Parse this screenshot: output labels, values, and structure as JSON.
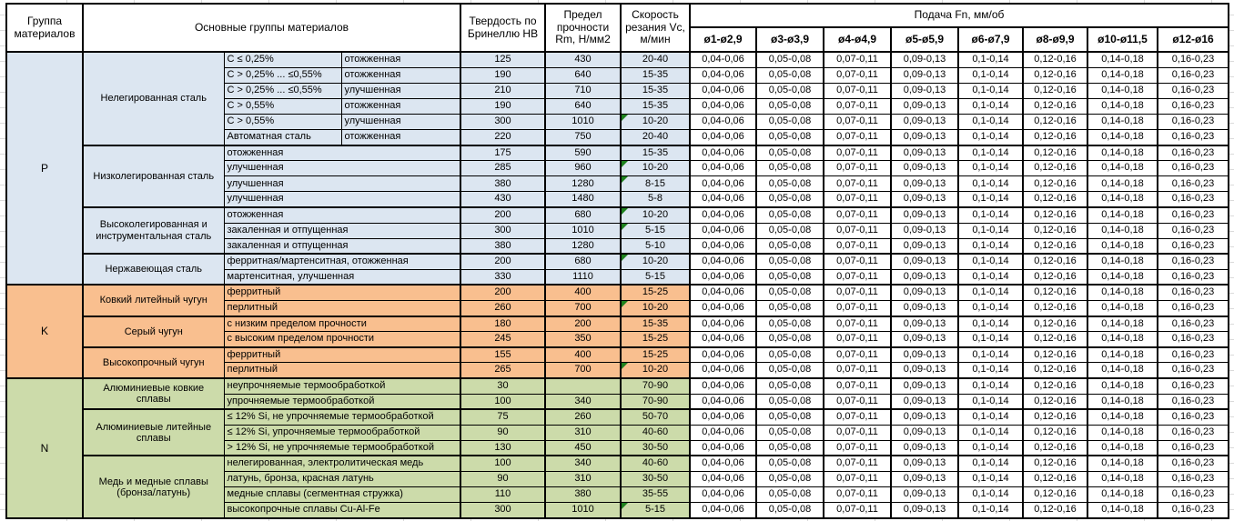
{
  "header": {
    "group": "Группа материалов",
    "main_groups": "Основные группы материалов",
    "hardness": "Твердость по Бринеллю HB",
    "strength": "Предел прочности Rm, Н/мм2",
    "speed": "Скорость резания Vc, м/мин",
    "feed": "Подача Fn, мм/об",
    "diameters": [
      "ø1-ø2,9",
      "ø3-ø3,9",
      "ø4-ø4,9",
      "ø5-ø5,9",
      "ø6-ø7,9",
      "ø8-ø9,9",
      "ø10-ø11,5",
      "ø12-ø16"
    ]
  },
  "feed_values": [
    "0,04-0,06",
    "0,05-0,08",
    "0,07-0,11",
    "0,09-0,13",
    "0,1-0,14",
    "0,12-0,16",
    "0,14-0,18",
    "0,16-0,23"
  ],
  "colors": {
    "p_fill": "#dce6f1",
    "k_fill": "#f9bf8f",
    "n_fill": "#ccdbaa",
    "flag_green": "#1e821e",
    "border": "#000000"
  },
  "sections": [
    {
      "group": "P",
      "fill": "#dce6f1",
      "subgroups": [
        {
          "name": "Нелегированная сталь",
          "rows": [
            {
              "desc1": "C ≤ 0,25%",
              "desc2": "отожженная",
              "hb": "125",
              "rm": "430",
              "vc": "20-40",
              "flag": false
            },
            {
              "desc1": "C > 0,25% ... ≤0,55%",
              "desc2": "отожженная",
              "hb": "190",
              "rm": "640",
              "vc": "15-35",
              "flag": false
            },
            {
              "desc1": "C > 0,25% ... ≤0,55%",
              "desc2": "улучшенная",
              "hb": "210",
              "rm": "710",
              "vc": "15-35",
              "flag": false
            },
            {
              "desc1": "C > 0,55%",
              "desc2": "отожженная",
              "hb": "190",
              "rm": "640",
              "vc": "15-35",
              "flag": false
            },
            {
              "desc1": "C > 0,55%",
              "desc2": "улучшенная",
              "hb": "300",
              "rm": "1010",
              "vc": "10-20",
              "flag": true
            },
            {
              "desc1": "Автоматная сталь",
              "desc2": "отожженная",
              "hb": "220",
              "rm": "750",
              "vc": "20-40",
              "flag": false
            }
          ]
        },
        {
          "name": "Низколегированная сталь",
          "rows": [
            {
              "desc": "отожженная",
              "hb": "175",
              "rm": "590",
              "vc": "15-35",
              "flag": false
            },
            {
              "desc": "улучшенная",
              "hb": "285",
              "rm": "960",
              "vc": "10-20",
              "flag": true
            },
            {
              "desc": "улучшенная",
              "hb": "380",
              "rm": "1280",
              "vc": "8-15",
              "flag": true
            },
            {
              "desc": "улучшенная",
              "hb": "430",
              "rm": "1480",
              "vc": "5-8",
              "flag": false
            }
          ]
        },
        {
          "name": "Высоколегированная и инструментальная сталь",
          "rows": [
            {
              "desc": "отожженная",
              "hb": "200",
              "rm": "680",
              "vc": "10-20",
              "flag": true
            },
            {
              "desc": "закаленная и отпущенная",
              "hb": "300",
              "rm": "1010",
              "vc": "5-15",
              "flag": true
            },
            {
              "desc": "закаленная и отпущенная",
              "hb": "380",
              "rm": "1280",
              "vc": "5-10",
              "flag": false
            }
          ]
        },
        {
          "name": "Нержавеющая сталь",
          "rows": [
            {
              "desc": "ферритная/мартенситная, отожженная",
              "hb": "200",
              "rm": "680",
              "vc": "10-20",
              "flag": true
            },
            {
              "desc": "мартенситная, улучшенная",
              "hb": "330",
              "rm": "1110",
              "vc": "5-15",
              "flag": false
            }
          ]
        }
      ]
    },
    {
      "group": "K",
      "fill": "#f9bf8f",
      "subgroups": [
        {
          "name": "Ковкий литейный чугун",
          "rows": [
            {
              "desc": "ферритный",
              "hb": "200",
              "rm": "400",
              "vc": "15-25",
              "flag": false
            },
            {
              "desc": "перлитный",
              "hb": "260",
              "rm": "700",
              "vc": "10-20",
              "flag": true
            }
          ]
        },
        {
          "name": "Серый чугун",
          "rows": [
            {
              "desc": "с низким пределом прочности",
              "hb": "180",
              "rm": "200",
              "vc": "15-35",
              "flag": false
            },
            {
              "desc": "с высоким пределом прочности",
              "hb": "245",
              "rm": "350",
              "vc": "15-25",
              "flag": false
            }
          ]
        },
        {
          "name": "Высокопрочный чугун",
          "rows": [
            {
              "desc": "ферритный",
              "hb": "155",
              "rm": "400",
              "vc": "15-25",
              "flag": false
            },
            {
              "desc": "перлитный",
              "hb": "265",
              "rm": "700",
              "vc": "10-20",
              "flag": true
            }
          ]
        }
      ]
    },
    {
      "group": "N",
      "fill": "#ccdbaa",
      "subgroups": [
        {
          "name": "Алюминиевые ковкие сплавы",
          "rows": [
            {
              "desc": "неупрочняемые термообработкой",
              "hb": "30",
              "rm": "",
              "vc": "70-90",
              "flag": false
            },
            {
              "desc": "упрочняемые термообработкой",
              "hb": "100",
              "rm": "340",
              "vc": "70-90",
              "flag": false
            }
          ]
        },
        {
          "name": "Алюминиевые литейные сплавы",
          "rows": [
            {
              "desc": "≤ 12% Si, не упрочняемые термообработкой",
              "hb": "75",
              "rm": "260",
              "vc": "50-70",
              "flag": false
            },
            {
              "desc": "≤ 12% Si, упрочняемые термообработкой",
              "hb": "90",
              "rm": "310",
              "vc": "40-60",
              "flag": false
            },
            {
              "desc": "> 12% Si, не упрочняемые термообработкой",
              "hb": "130",
              "rm": "450",
              "vc": "30-50",
              "flag": false
            }
          ]
        },
        {
          "name": "Медь и медные сплавы (бронза/латунь)",
          "rows": [
            {
              "desc": "нелегированная, электролитическая медь",
              "hb": "100",
              "rm": "340",
              "vc": "40-60",
              "flag": false
            },
            {
              "desc": "латунь, бронза, красная латунь",
              "hb": "90",
              "rm": "310",
              "vc": "30-50",
              "flag": false
            },
            {
              "desc": "медные сплавы (сегментная стружка)",
              "hb": "110",
              "rm": "380",
              "vc": "35-55",
              "flag": false
            },
            {
              "desc": "высокопрочные сплавы Cu-Al-Fe",
              "hb": "300",
              "rm": "1010",
              "vc": "5-15",
              "flag": true
            }
          ]
        }
      ]
    }
  ]
}
